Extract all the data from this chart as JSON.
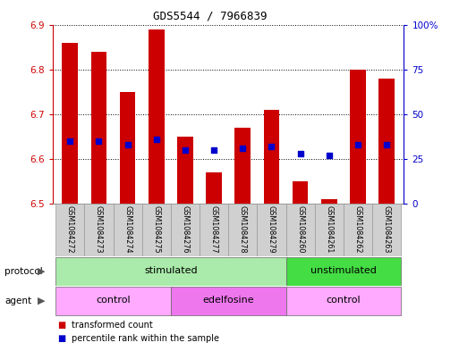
{
  "title": "GDS5544 / 7966839",
  "samples": [
    "GSM1084272",
    "GSM1084273",
    "GSM1084274",
    "GSM1084275",
    "GSM1084276",
    "GSM1084277",
    "GSM1084278",
    "GSM1084279",
    "GSM1084260",
    "GSM1084261",
    "GSM1084262",
    "GSM1084263"
  ],
  "bar_values": [
    6.86,
    6.84,
    6.75,
    6.89,
    6.65,
    6.57,
    6.67,
    6.71,
    6.55,
    6.51,
    6.8,
    6.78
  ],
  "bar_base": 6.5,
  "dot_values_pct": [
    35,
    35,
    33,
    36,
    30,
    30,
    31,
    32,
    28,
    27,
    33,
    33
  ],
  "ylim": [
    6.5,
    6.9
  ],
  "yticks": [
    6.5,
    6.6,
    6.7,
    6.8,
    6.9
  ],
  "y2ticks": [
    0,
    25,
    50,
    75,
    100
  ],
  "bar_color": "#cc0000",
  "dot_color": "#0000cc",
  "bar_width": 0.55,
  "protocol_groups": [
    {
      "label": "stimulated",
      "start": 0,
      "end": 8,
      "color": "#aaeaaa"
    },
    {
      "label": "unstimulated",
      "start": 8,
      "end": 12,
      "color": "#44dd44"
    }
  ],
  "agent_groups": [
    {
      "label": "control",
      "start": 0,
      "end": 4,
      "color": "#ffaaff"
    },
    {
      "label": "edelfosine",
      "start": 4,
      "end": 8,
      "color": "#ee77ee"
    },
    {
      "label": "control",
      "start": 8,
      "end": 12,
      "color": "#ffaaff"
    }
  ],
  "protocol_label": "protocol",
  "agent_label": "agent",
  "legend_bar_label": "transformed count",
  "legend_dot_label": "percentile rank within the sample",
  "bg_color": "#ffffff",
  "grid_color": "#000000",
  "left_ylabel_color": "#cc0000",
  "right_ylabel_color": "#0000cc",
  "title_fontsize": 9
}
